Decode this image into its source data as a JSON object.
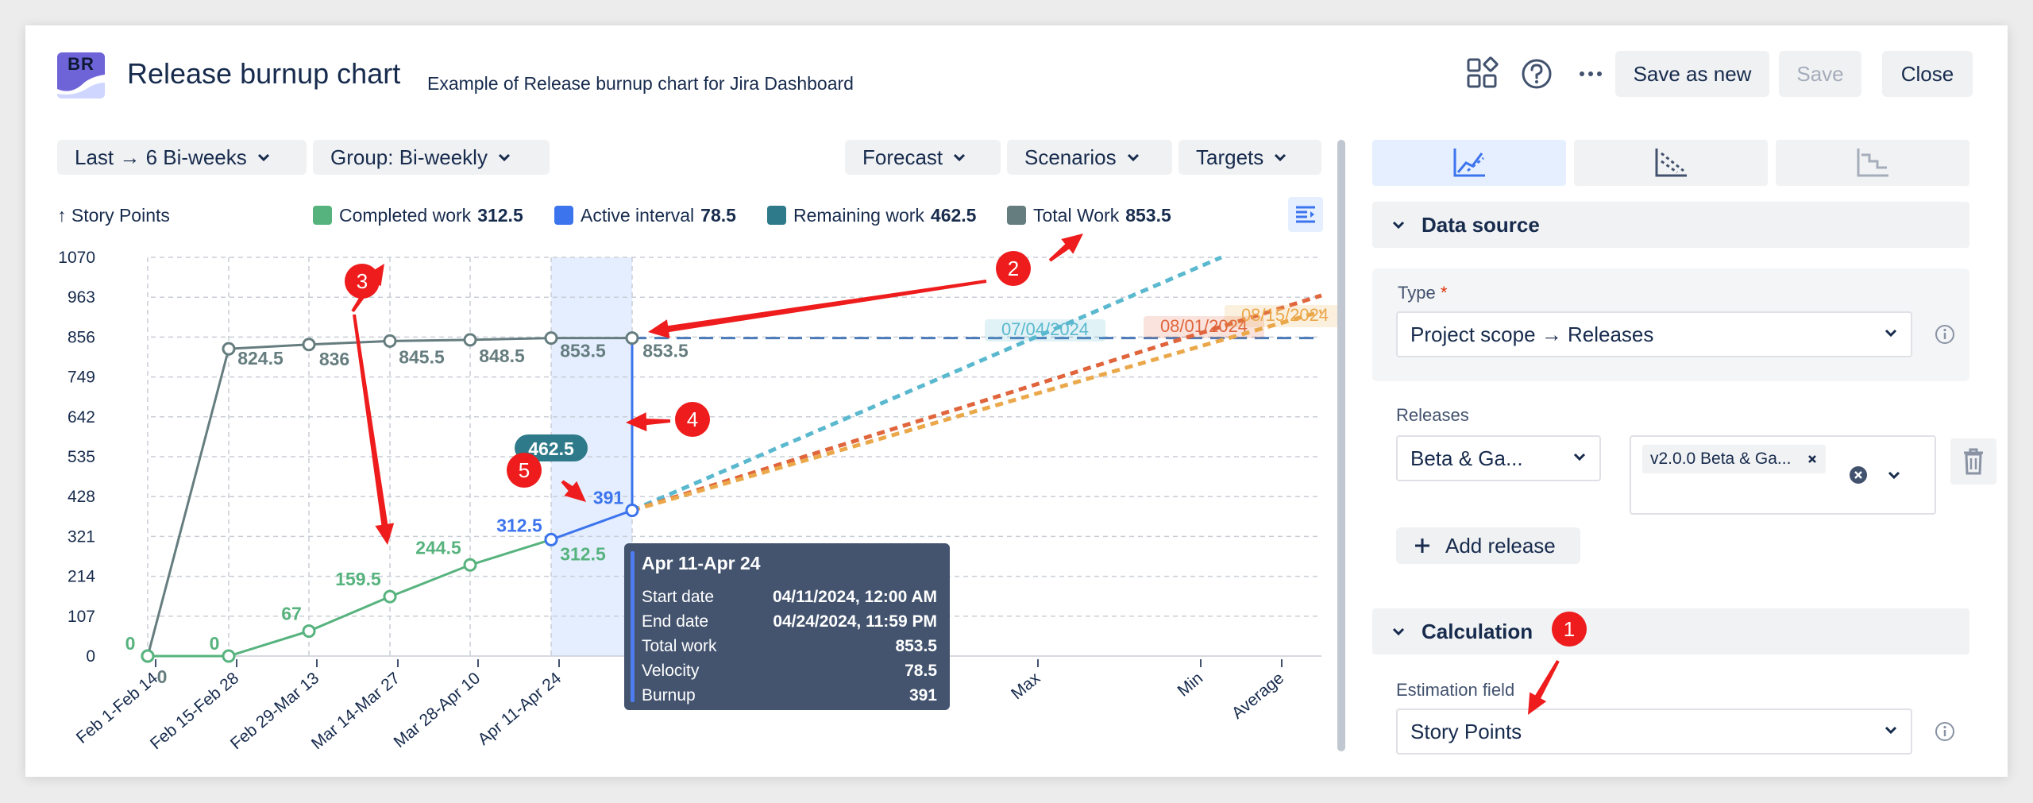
{
  "header": {
    "logo_text": "BR",
    "title": "Release burnup chart",
    "subtitle": "Example of Release burnup chart for Jira Dashboard",
    "save_as_new_label": "Save as new",
    "save_label": "Save",
    "close_label": "Close"
  },
  "toolbar": {
    "range_label": "Last → 6 Bi-weeks",
    "group_label": "Group: Bi-weekly",
    "forecast_label": "Forecast",
    "scenarios_label": "Scenarios",
    "targets_label": "Targets"
  },
  "chart_data": {
    "type": "line",
    "ylabel": "↑ Story Points",
    "y_ticks": [
      0,
      107,
      214,
      321,
      428,
      535,
      642,
      749,
      856,
      963,
      1070
    ],
    "ylim": [
      0,
      1070
    ],
    "x_ticks": [
      "Feb 1-Feb 14",
      "Feb 15-Feb 28",
      "Feb 29-Mar 13",
      "Mar 14-Mar 27",
      "Mar 28-Apr 10",
      "Apr 11-Apr 24"
    ],
    "x_extra_ticks": [
      "Max",
      "Min",
      "Average"
    ],
    "grid": true,
    "legend": [
      {
        "name": "Completed work",
        "value": "312.5",
        "color": "#57b37e"
      },
      {
        "name": "Active interval",
        "value": "78.5",
        "color": "#3c74ee"
      },
      {
        "name": "Remaining work",
        "value": "462.5",
        "color": "#2f7a8a"
      },
      {
        "name": "Total Work",
        "value": "853.5",
        "color": "#667d7f"
      }
    ],
    "series": [
      {
        "name": "Total Work",
        "values": [
          0,
          824.5,
          836,
          845.5,
          848.5,
          853.5,
          853.5
        ],
        "labels": [
          "0",
          "824.5",
          "836",
          "845.5",
          "848.5",
          "853.5",
          "853.5"
        ],
        "color": "#667d7f"
      },
      {
        "name": "Completed work",
        "values": [
          0,
          0,
          67,
          159.5,
          244.5,
          312.5
        ],
        "labels": [
          "0",
          "0",
          "67",
          "159.5",
          "244.5",
          "312.5"
        ],
        "color": "#57b37e"
      },
      {
        "name": "Active interval",
        "values": [
          312.5,
          391
        ],
        "labels": [
          "312.5",
          "391"
        ],
        "color": "#3c74ee"
      }
    ],
    "remaining_badge": "462.5",
    "forecast_dates": [
      {
        "label": "07/04/2024",
        "color": "#5ab8cf"
      },
      {
        "label": "08/01/2024",
        "color": "#e0653c"
      },
      {
        "label": "08/15/2024",
        "color": "#eba84a"
      }
    ],
    "total_scope_line": {
      "value": 853.5,
      "color": "#4a7ab8"
    }
  },
  "annotations": [
    "1",
    "2",
    "3",
    "4",
    "5"
  ],
  "tooltip": {
    "title": "Apr 11-Apr 24",
    "rows": [
      {
        "key": "Start date",
        "value": "04/11/2024, 12:00 AM"
      },
      {
        "key": "End date",
        "value": "04/24/2024, 11:59 PM"
      },
      {
        "key": "Total work",
        "value": "853.5"
      },
      {
        "key": "Velocity",
        "value": "78.5"
      },
      {
        "key": "Burnup",
        "value": "391"
      }
    ]
  },
  "sidebar": {
    "data_source_label": "Data source",
    "type_label": "Type",
    "required_mark": "*",
    "type_value": "Project scope → Releases",
    "releases_label": "Releases",
    "release_group_value": "Beta & Ga...",
    "release_tag": "v2.0.0 Beta & Ga...",
    "add_release_label": "Add release",
    "calculation_label": "Calculation",
    "estimation_label": "Estimation field",
    "estimation_value": "Story Points"
  }
}
